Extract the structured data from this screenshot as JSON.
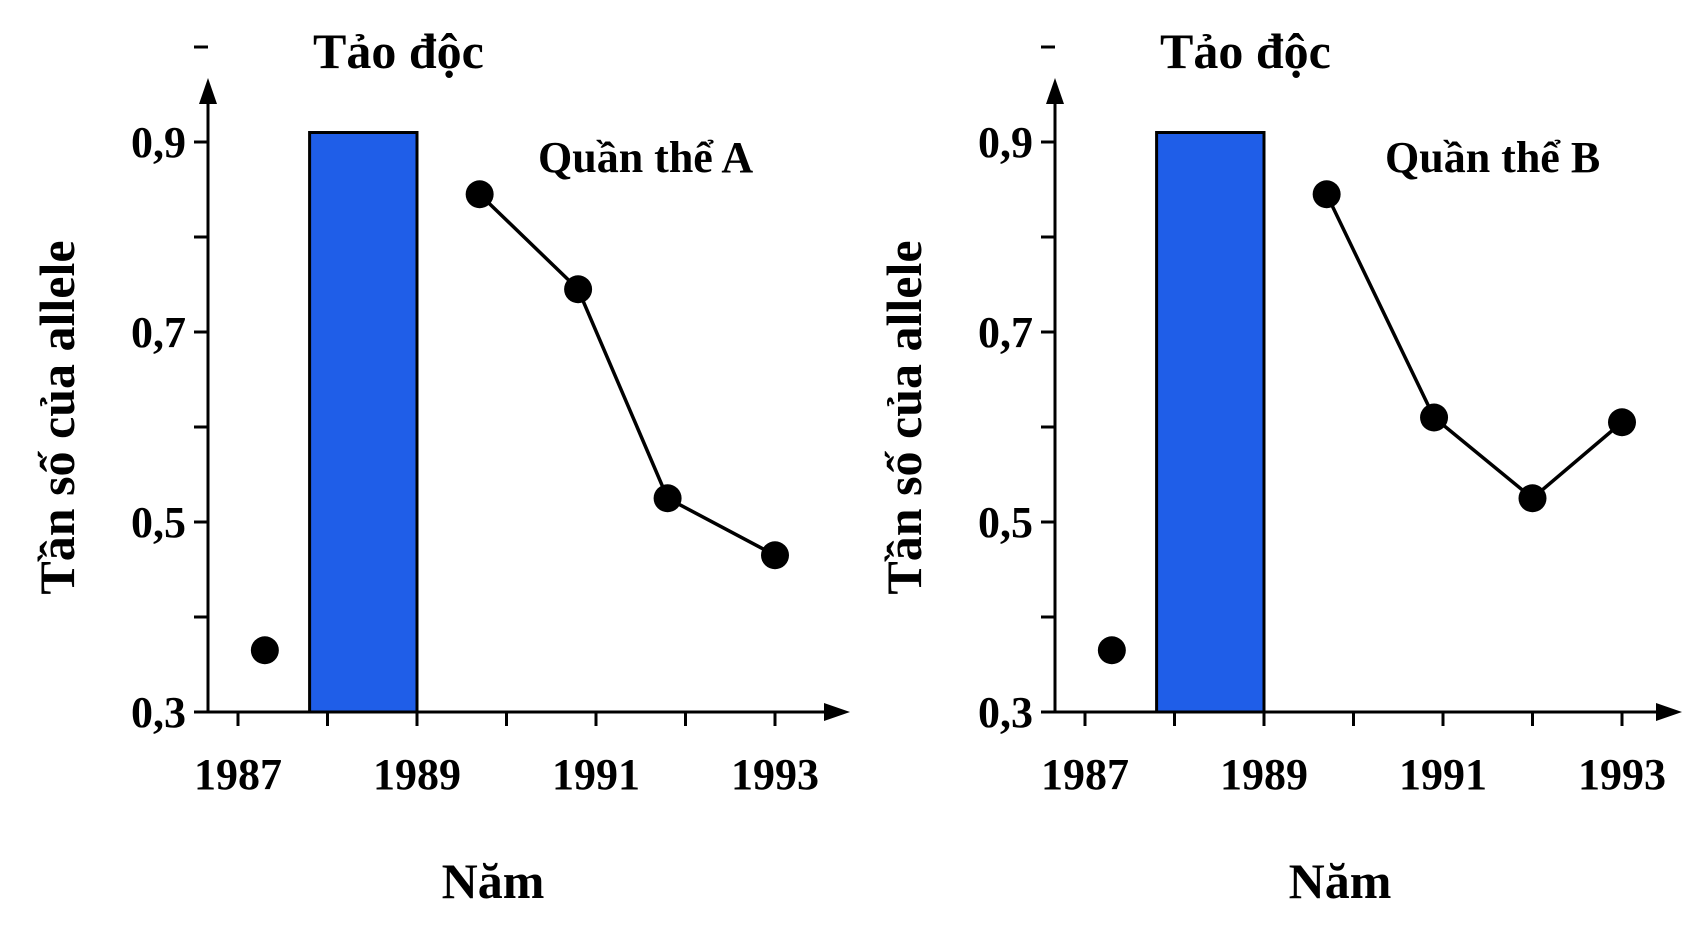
{
  "colors": {
    "bar": "#1f5ee8",
    "ink": "#000000",
    "background": "#ffffff"
  },
  "chart_data": [
    {
      "type": "line",
      "title": "Tảo độc",
      "series_label": "Quần thể A",
      "xlabel": "Năm",
      "ylabel": "Tần số của allele",
      "x_ticks": [
        "1987",
        "1989",
        "1991",
        "1993"
      ],
      "y_ticks": [
        "0,3",
        "0,5",
        "0,7",
        "0,9"
      ],
      "xlim": [
        1986.7,
        1993.8
      ],
      "ylim": [
        0.3,
        1.0
      ],
      "bar": {
        "x_start": 1987.8,
        "x_end": 1989.0,
        "value": 0.91
      },
      "points": [
        {
          "x": 1987.3,
          "y": 0.365,
          "connected": false
        },
        {
          "x": 1989.7,
          "y": 0.845,
          "connected": true
        },
        {
          "x": 1990.8,
          "y": 0.745,
          "connected": true
        },
        {
          "x": 1991.8,
          "y": 0.525,
          "connected": true
        },
        {
          "x": 1993.0,
          "y": 0.465,
          "connected": true
        }
      ]
    },
    {
      "type": "line",
      "title": "Tảo độc",
      "series_label": "Quần thể B",
      "xlabel": "Năm",
      "ylabel": "Tần số của allele",
      "x_ticks": [
        "1987",
        "1989",
        "1991",
        "1993"
      ],
      "y_ticks": [
        "0,3",
        "0,5",
        "0,7",
        "0,9"
      ],
      "xlim": [
        1986.7,
        1993.8
      ],
      "ylim": [
        0.3,
        1.0
      ],
      "bar": {
        "x_start": 1987.8,
        "x_end": 1989.0,
        "value": 0.91
      },
      "points": [
        {
          "x": 1987.3,
          "y": 0.365,
          "connected": false
        },
        {
          "x": 1989.7,
          "y": 0.845,
          "connected": true
        },
        {
          "x": 1990.9,
          "y": 0.61,
          "connected": true
        },
        {
          "x": 1992.0,
          "y": 0.525,
          "connected": true
        },
        {
          "x": 1993.0,
          "y": 0.605,
          "connected": true
        }
      ]
    }
  ]
}
